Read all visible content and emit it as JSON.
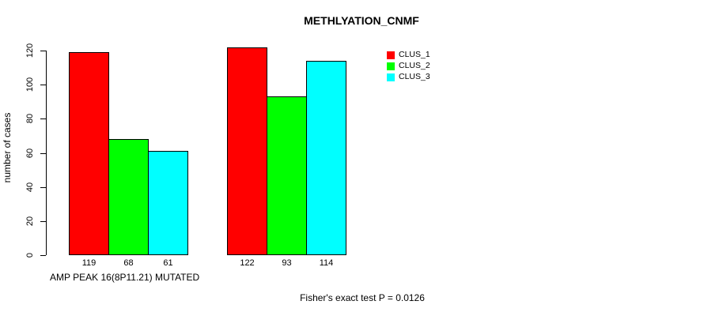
{
  "title": "METHLYATION_CNMF",
  "y_axis": {
    "label": "number of cases",
    "ticks": [
      0,
      20,
      40,
      60,
      80,
      100,
      120
    ]
  },
  "x_axis": {
    "label": "AMP PEAK 16(8P11.21) MUTATED"
  },
  "legend": {
    "items": [
      {
        "label": "CLUS_1",
        "color": "#ff0000"
      },
      {
        "label": "CLUS_2",
        "color": "#00ff00"
      },
      {
        "label": "CLUS_3",
        "color": "#00ffff"
      }
    ]
  },
  "annotation": "Fisher's exact test P = 0.0126",
  "chart_data": {
    "type": "bar",
    "title": "METHLYATION_CNMF",
    "xlabel": "AMP PEAK 16(8P11.21) MUTATED",
    "ylabel": "number of cases",
    "ylim": [
      0,
      120
    ],
    "yticks": [
      0,
      20,
      40,
      60,
      80,
      100,
      120
    ],
    "grid": false,
    "legend_position": "top-right",
    "bar_border_color": "#000000",
    "series": [
      {
        "name": "CLUS_1",
        "color": "#ff0000",
        "values": [
          119,
          122
        ]
      },
      {
        "name": "CLUS_2",
        "color": "#00ff00",
        "values": [
          68,
          93
        ]
      },
      {
        "name": "CLUS_3",
        "color": "#00ffff",
        "values": [
          61,
          114
        ]
      }
    ],
    "bar_value_labels": [
      [
        119,
        68,
        61
      ],
      [
        122,
        93,
        114
      ]
    ],
    "annotation": "Fisher's exact test P = 0.0126"
  }
}
